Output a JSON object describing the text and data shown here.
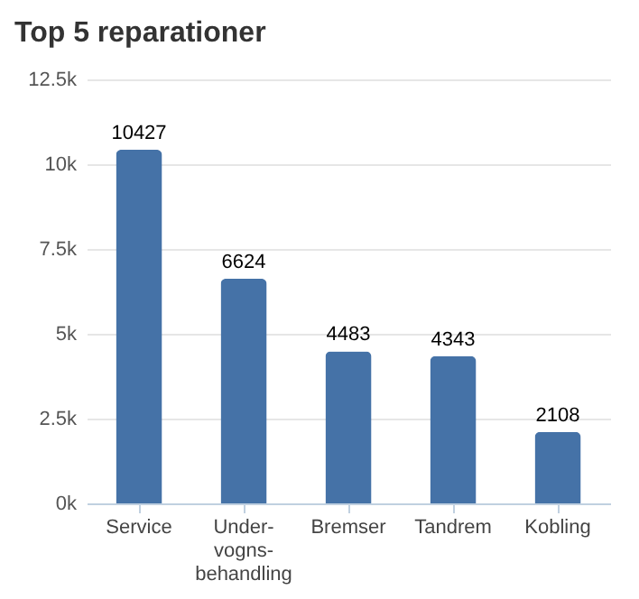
{
  "chart_data": {
    "type": "bar",
    "title": "Top 5 reparationer",
    "categories": [
      "Service",
      "Under-vogns-behandling",
      "Bremser",
      "Tandrem",
      "Kobling"
    ],
    "values": [
      10427,
      6624,
      4483,
      4343,
      2108
    ],
    "color": "#4572a7",
    "ylim": [
      0,
      12500
    ],
    "yticks": [
      {
        "value": 0,
        "label": "0k"
      },
      {
        "value": 2500,
        "label": "2.5k"
      },
      {
        "value": 5000,
        "label": "5k"
      },
      {
        "value": 7500,
        "label": "7.5k"
      },
      {
        "value": 10000,
        "label": "10k"
      },
      {
        "value": 12500,
        "label": "12.5k"
      }
    ],
    "grid": "y",
    "data_labels": true
  }
}
